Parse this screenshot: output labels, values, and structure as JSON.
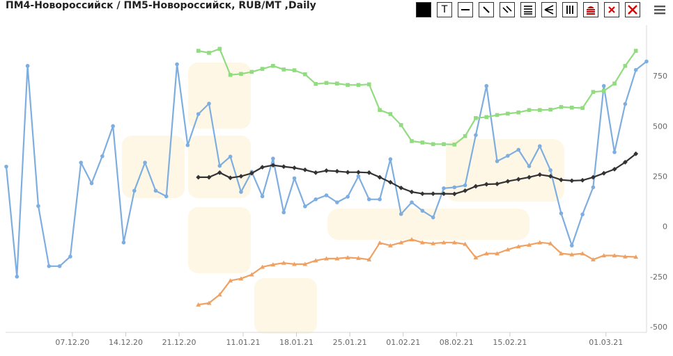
{
  "title": "ПМ4-Новороссийск / ПМ5-Новороссийск, RUB/MT ,Daily",
  "toolbar": {
    "icons": [
      "fill-square-icon",
      "text-tool-icon",
      "horizontal-line-icon",
      "trend-line-icon",
      "parallel-lines-icon",
      "fibonacci-icon",
      "pitchfork-icon",
      "vertical-lines-icon",
      "layers-icon",
      "delete-icon",
      "delete-all-icon",
      "menu-icon"
    ],
    "labels": {
      "text_tool": "T"
    }
  },
  "chart_data": {
    "type": "line",
    "x_ticks": [
      "07.12.20",
      "14.12.20",
      "21.12.20",
      "11.01.21",
      "18.01.21",
      "25.01.21",
      "01.02.21",
      "08.02.21",
      "15.02.21",
      "01.03.21"
    ],
    "y_ticks": [
      "750",
      "500",
      "250",
      "0",
      "-250",
      "-500"
    ],
    "ylim": [
      -500,
      1000
    ],
    "y_axis_side": "right",
    "grid": false,
    "legend": "none",
    "series": [
      {
        "color": "#7eaee0",
        "marker": "circle",
        "values": [
          298,
          -250,
          800,
          102,
          -198,
          -198,
          -150,
          318,
          215,
          350,
          500,
          -80,
          178,
          318,
          178,
          150,
          808,
          405,
          560,
          612,
          302,
          348,
          172,
          272,
          150,
          338,
          70,
          240,
          100,
          135,
          155,
          120,
          148,
          250,
          135,
          135,
          335,
          62,
          120,
          78,
          45,
          190,
          195,
          205,
          455,
          700,
          325,
          352,
          382,
          300,
          400,
          280,
          65,
          -95,
          60,
          195,
          700,
          370,
          610,
          780,
          822
        ]
      },
      {
        "color": "#90dc7e",
        "marker": "square",
        "values": [
          null,
          null,
          null,
          null,
          null,
          null,
          null,
          null,
          null,
          null,
          null,
          null,
          null,
          null,
          null,
          null,
          null,
          null,
          875,
          865,
          885,
          755,
          760,
          770,
          785,
          800,
          782,
          778,
          758,
          710,
          715,
          712,
          705,
          705,
          708,
          580,
          560,
          505,
          425,
          418,
          410,
          410,
          408,
          450,
          540,
          545,
          555,
          562,
          568,
          580,
          580,
          582,
          595,
          592,
          590,
          670,
          675,
          712,
          800,
          875
        ]
      },
      {
        "color": "#333333",
        "marker": "diamond",
        "values": [
          null,
          null,
          null,
          null,
          null,
          null,
          null,
          null,
          null,
          null,
          null,
          null,
          null,
          null,
          null,
          null,
          null,
          null,
          245,
          245,
          268,
          242,
          250,
          265,
          295,
          305,
          298,
          292,
          282,
          268,
          278,
          275,
          270,
          270,
          268,
          245,
          220,
          192,
          172,
          163,
          163,
          163,
          162,
          178,
          200,
          210,
          212,
          225,
          235,
          245,
          258,
          250,
          232,
          228,
          230,
          245,
          265,
          285,
          320,
          362
        ]
      },
      {
        "color": "#f0a060",
        "marker": "triangle",
        "values": [
          null,
          null,
          null,
          null,
          null,
          null,
          null,
          null,
          null,
          null,
          null,
          null,
          null,
          null,
          null,
          null,
          null,
          null,
          -390,
          -382,
          -340,
          -270,
          -260,
          -240,
          -202,
          -190,
          -182,
          -188,
          -188,
          -170,
          -160,
          -160,
          -155,
          -158,
          -165,
          -82,
          -95,
          -80,
          -65,
          -80,
          -85,
          -80,
          -80,
          -88,
          -155,
          -135,
          -135,
          -115,
          -100,
          -92,
          -80,
          -85,
          -135,
          -140,
          -135,
          -165,
          -145,
          -145,
          -150,
          -152
        ]
      }
    ]
  }
}
